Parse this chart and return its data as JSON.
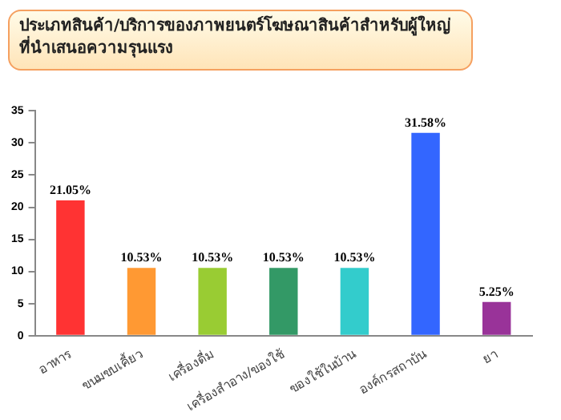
{
  "chart_data": {
    "type": "bar",
    "title": "ประเภทสินค้า/บริการของภาพยนตร์โฆษณาสินค้าสำหรับผู้ใหญ่ที่นำเสนอความรุนแรง",
    "categories": [
      "อาหาร",
      "ขนมขบเคี้ยว",
      "เครื่องดื่ม",
      "เครื่องสำอาง/ของใช้",
      "ของใช้ในบ้าน",
      "องค์กรสถาบัน",
      "ยา"
    ],
    "values": [
      21.05,
      10.53,
      10.53,
      10.53,
      10.53,
      31.58,
      5.25
    ],
    "value_labels": [
      "21.05%",
      "10.53%",
      "10.53%",
      "10.53%",
      "10.53%",
      "31.58%",
      "5.25%"
    ],
    "colors": [
      "#ff3333",
      "#ff9933",
      "#99cc33",
      "#339966",
      "#33cccc",
      "#3366ff",
      "#993399"
    ],
    "ylim": [
      0,
      35
    ],
    "yticks": [
      0,
      5,
      10,
      15,
      20,
      25,
      30,
      35
    ],
    "grid": false,
    "legend": false
  }
}
